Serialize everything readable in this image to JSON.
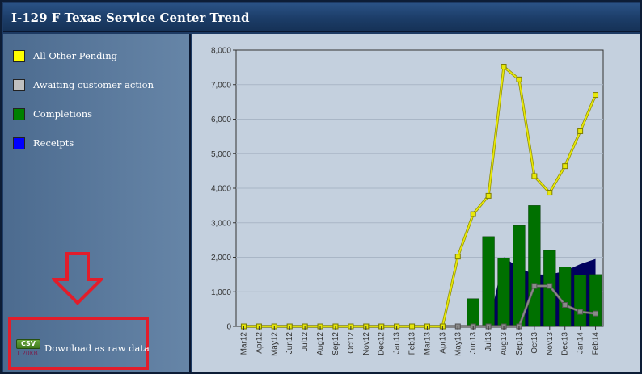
{
  "window": {
    "title": "I-129 F Texas Service Center Trend"
  },
  "legend": [
    {
      "label": "All Other Pending",
      "color": "#ffff00"
    },
    {
      "label": "Awaiting customer action",
      "color": "#c0c0c0"
    },
    {
      "label": "Completions",
      "color": "#008000"
    },
    {
      "label": "Receipts",
      "color": "#0000ff"
    }
  ],
  "download": {
    "badge_label": "CSV",
    "file_size": "1.20KB",
    "link_text": "Download as raw data"
  },
  "annotation": {
    "arrow_icon": "down-arrow-icon",
    "arrow_color": "#e21d2b",
    "highlight_color": "#e21d2b"
  },
  "chart_data": {
    "type": "bar",
    "title": "",
    "xlabel": "",
    "ylabel": "",
    "ylim": [
      0,
      8000
    ],
    "yticks": [
      0,
      1000,
      2000,
      3000,
      4000,
      5000,
      6000,
      7000,
      8000
    ],
    "ytick_labels": [
      "0",
      "1,000",
      "2,000",
      "3,000",
      "4,000",
      "5,000",
      "6,000",
      "7,000",
      "8,000"
    ],
    "grid": true,
    "categories": [
      "Mar12",
      "Apr12",
      "May12",
      "Jun12",
      "Jul12",
      "Aug12",
      "Sep12",
      "Oct12",
      "Nov12",
      "Dec12",
      "Jan13",
      "Feb13",
      "Mar13",
      "Apr13",
      "May13",
      "Jun13",
      "Jul13",
      "Aug13",
      "Sep13",
      "Oct13",
      "Nov13",
      "Dec13",
      "Jan14",
      "Feb14"
    ],
    "series": [
      {
        "name": "Receipts",
        "kind": "area",
        "color": "#00005e",
        "values": [
          0,
          0,
          0,
          0,
          0,
          0,
          0,
          0,
          0,
          0,
          0,
          0,
          0,
          0,
          0,
          0,
          0,
          2000,
          1700,
          1500,
          1500,
          1600,
          1800,
          1950
        ]
      },
      {
        "name": "Completions",
        "kind": "bar",
        "color": "#007000",
        "values": [
          0,
          0,
          0,
          0,
          0,
          0,
          0,
          0,
          0,
          0,
          0,
          0,
          0,
          0,
          0,
          800,
          2600,
          1980,
          2920,
          3500,
          2200,
          1720,
          1480,
          1500
        ]
      },
      {
        "name": "All Other Pending",
        "kind": "line",
        "color": "#e8e80a",
        "values": [
          0,
          0,
          0,
          0,
          0,
          0,
          0,
          0,
          0,
          0,
          0,
          0,
          0,
          0,
          2020,
          3250,
          3780,
          7520,
          7150,
          4350,
          3870,
          4640,
          5650,
          6700
        ]
      },
      {
        "name": "Awaiting customer action",
        "kind": "line",
        "color": "#8a8a8a",
        "values": [
          0,
          0,
          0,
          0,
          0,
          0,
          0,
          0,
          0,
          0,
          0,
          0,
          0,
          0,
          0,
          0,
          0,
          0,
          0,
          1170,
          1170,
          620,
          420,
          370
        ]
      }
    ]
  }
}
